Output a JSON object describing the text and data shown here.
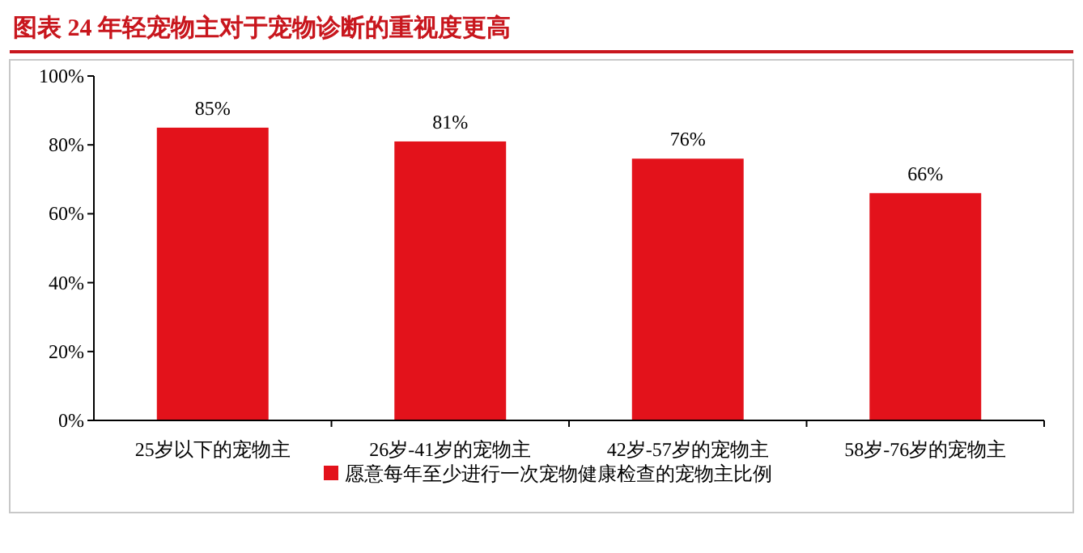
{
  "chart_data": {
    "type": "bar",
    "title": "图表 24   年轻宠物主对于宠物诊断的重视度更高",
    "categories": [
      "25岁以下的宠物主",
      "26岁-41岁的宠物主",
      "42岁-57岁的宠物主",
      "58岁-76岁的宠物主"
    ],
    "series": [
      {
        "name": "愿意每年至少进行一次宠物健康检查的宠物主比例",
        "color": "#e3121b",
        "values": [
          85,
          81,
          76,
          66
        ]
      }
    ],
    "ylim": [
      0,
      100
    ],
    "yticks": [
      {
        "value": 0,
        "label": "0%"
      },
      {
        "value": 20,
        "label": "20%"
      },
      {
        "value": 40,
        "label": "40%"
      },
      {
        "value": 60,
        "label": "60%"
      },
      {
        "value": 80,
        "label": "80%"
      },
      {
        "value": 100,
        "label": "100%"
      }
    ],
    "value_labels": [
      "85%",
      "81%",
      "76%",
      "66%"
    ],
    "legend": "bottom",
    "grid": false
  }
}
